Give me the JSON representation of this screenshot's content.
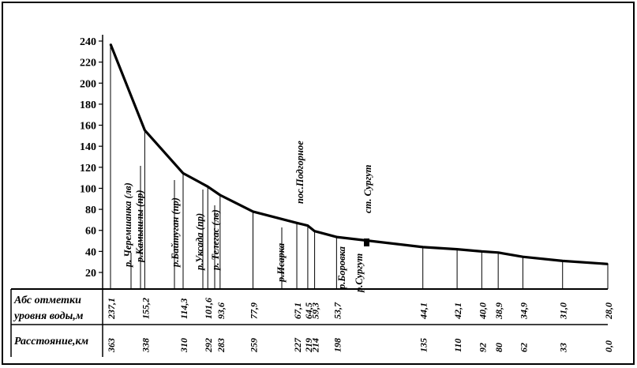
{
  "chart_data": {
    "type": "line",
    "title": "",
    "xlabel": "",
    "ylabel": "",
    "ylim": [
      0,
      250
    ],
    "y_ticks": [
      "20",
      "40",
      "60",
      "80",
      "100",
      "120",
      "140",
      "160",
      "180",
      "200",
      "220",
      "240"
    ],
    "x_direction": "distance decreasing left to right",
    "distance_km": [
      363,
      338,
      310,
      292,
      283,
      259,
      227,
      219,
      214,
      198,
      135,
      110,
      92,
      80,
      62,
      33,
      0
    ],
    "water_level_m": [
      237.1,
      155.2,
      114.3,
      101.6,
      93.6,
      77.9,
      67.1,
      64.5,
      59.3,
      53.7,
      44.1,
      42.1,
      40.0,
      38.9,
      34.9,
      31.0,
      28.0
    ],
    "level_labels": [
      "237,1",
      "155,2",
      "114,3",
      "101,6",
      "93,6",
      "77,9",
      "67,1",
      "64,5",
      "59,3",
      "53,7",
      "44,1",
      "42,1",
      "40,0",
      "38,9",
      "34,9",
      "31,0",
      "28,0"
    ],
    "distance_labels": [
      "363",
      "338",
      "310",
      "292",
      "283",
      "259",
      "227",
      "219",
      "214",
      "198",
      "135",
      "110",
      "92",
      "80",
      "62",
      "33",
      "0,0"
    ],
    "annotations": [
      {
        "text": "р. Черемшанка (лв)"
      },
      {
        "text": "р.Камышлы (пр)"
      },
      {
        "text": "р.Байтуган (пр)"
      },
      {
        "text": "р.Уксада (пр)"
      },
      {
        "text": "р. Телегас (лв)"
      },
      {
        "text": "р.Исарка"
      },
      {
        "text": "пос.Подгорное"
      },
      {
        "text": "р.Боровка"
      },
      {
        "text": "ст. Сургут"
      },
      {
        "text": "р.Сургут"
      }
    ],
    "table_rows": [
      "Абс отметки уровня воды,м",
      "Расстояние,км"
    ]
  }
}
